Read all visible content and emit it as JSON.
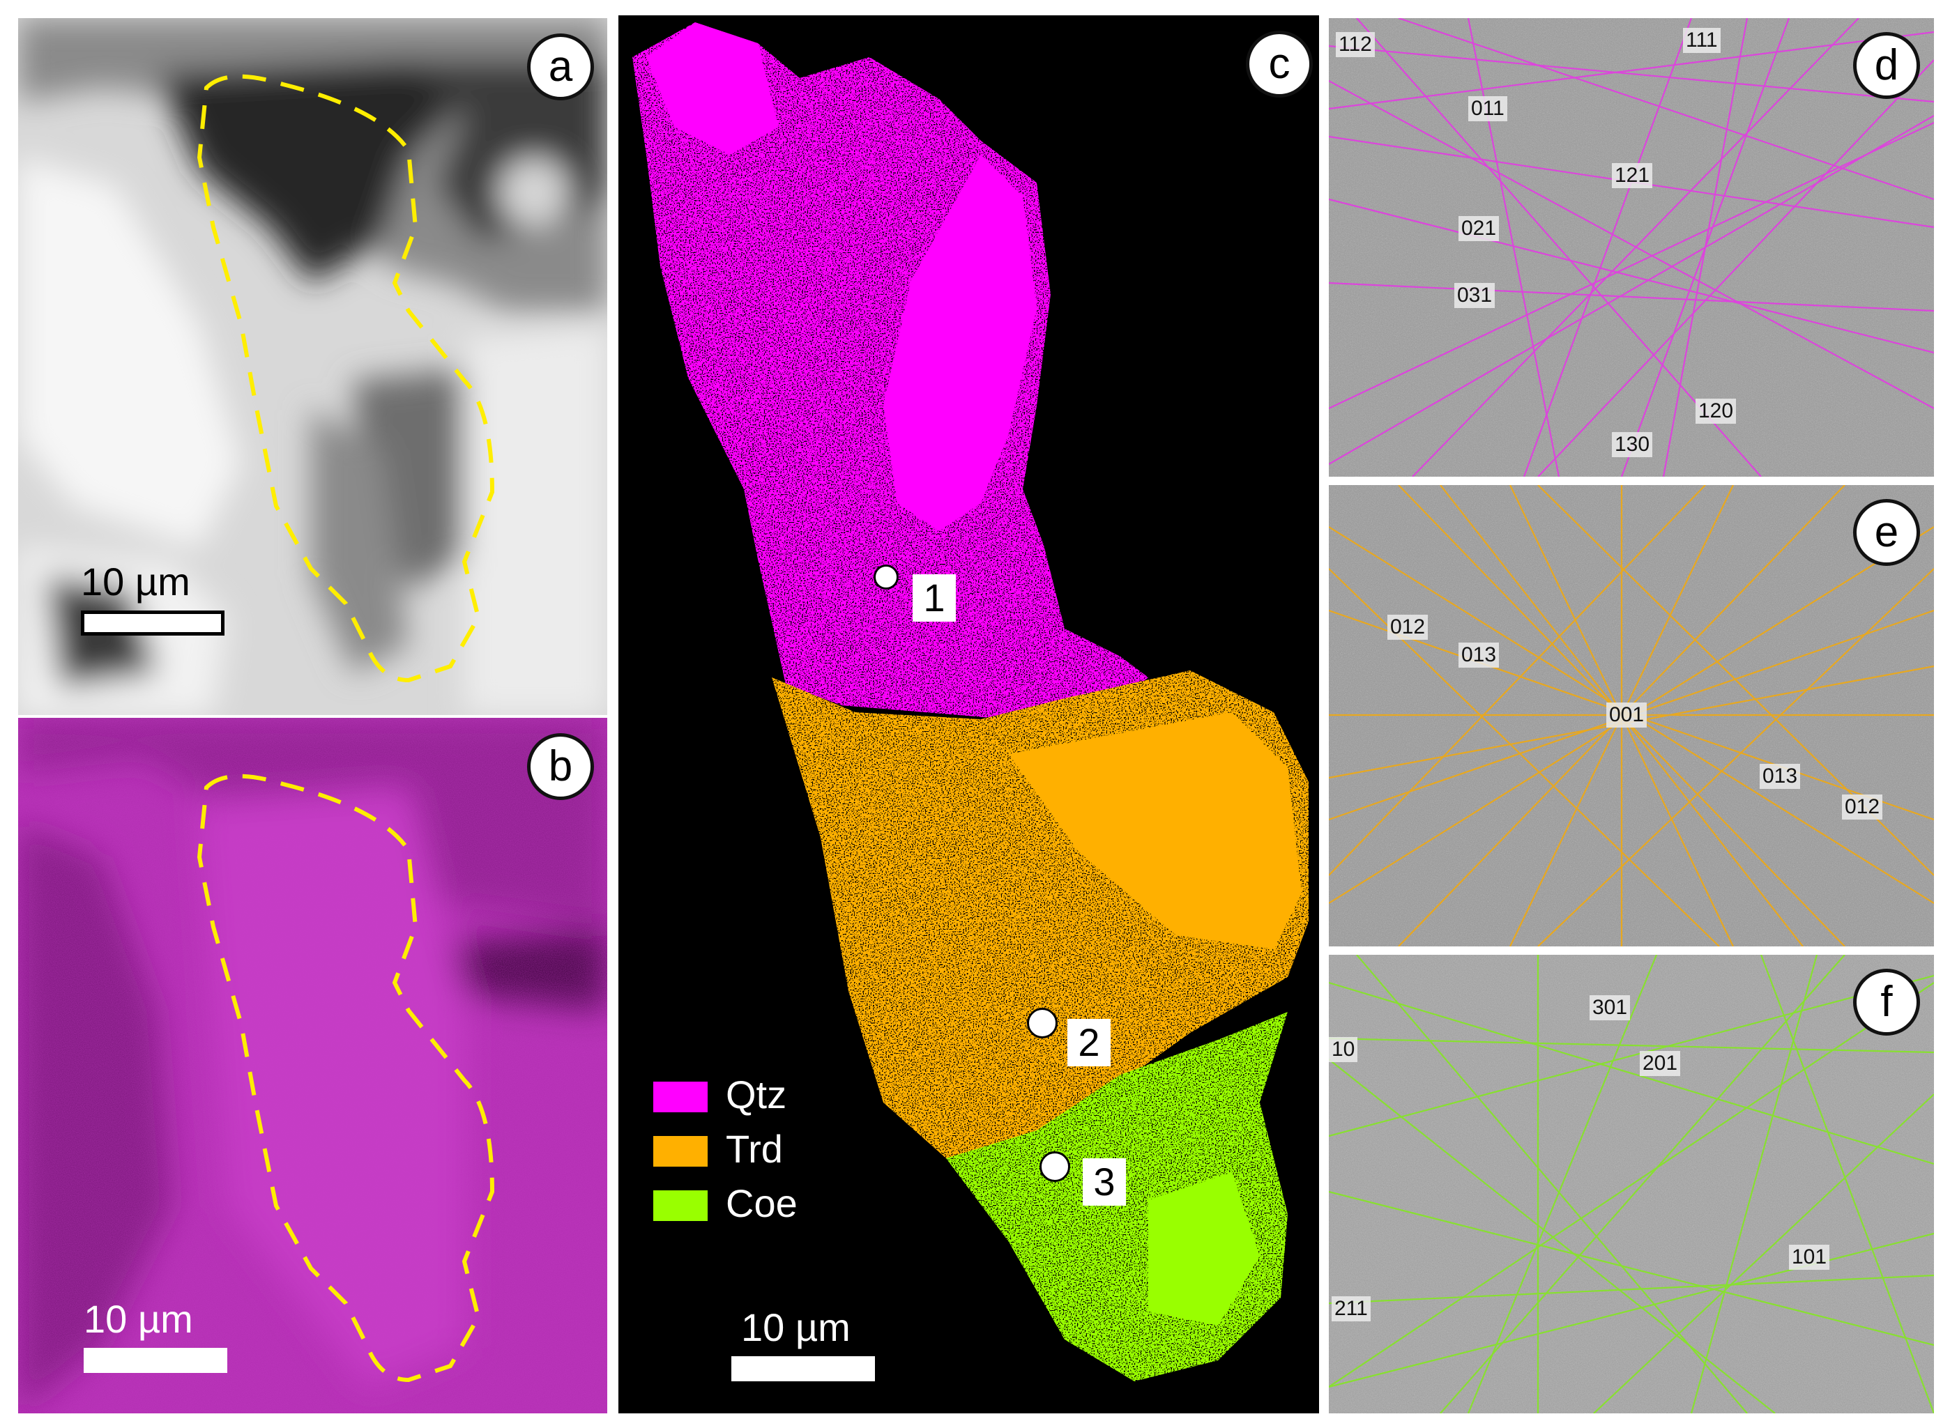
{
  "panels": {
    "a": {
      "letter": "a",
      "scale_label": "10 µm"
    },
    "b": {
      "letter": "b",
      "scale_label": "10 µm"
    },
    "c": {
      "letter": "c",
      "scale_label": "10 µm",
      "points": [
        "1",
        "2",
        "3"
      ],
      "legend": [
        {
          "label": "Qtz",
          "color": "#ff00ff"
        },
        {
          "label": "Trd",
          "color": "#ffb000"
        },
        {
          "label": "Coe",
          "color": "#99ff00"
        }
      ]
    },
    "d": {
      "letter": "d",
      "line_color": "#e040e0",
      "indices": [
        "112",
        "111",
        "011",
        "121",
        "021",
        "031",
        "120",
        "130"
      ]
    },
    "e": {
      "letter": "e",
      "line_color": "#e8a820",
      "indices": [
        "012",
        "013",
        "001",
        "013",
        "012"
      ]
    },
    "f": {
      "letter": "f",
      "line_color": "#88e030",
      "indices": [
        "301",
        "10",
        "201",
        "101",
        "211"
      ]
    }
  },
  "colors": {
    "outline": "#ffee00",
    "qtz": "#ff00ff",
    "trd": "#ffb000",
    "coe": "#99ff00"
  }
}
